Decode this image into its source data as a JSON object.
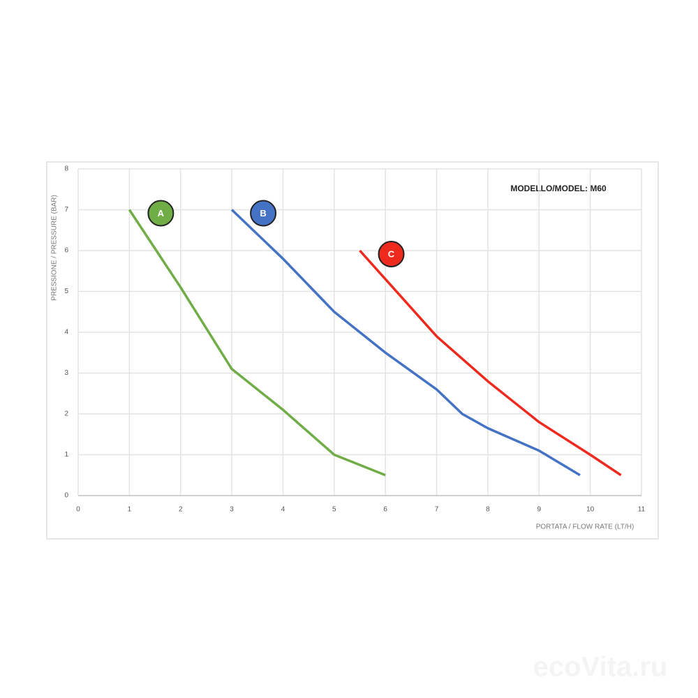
{
  "chart_data": {
    "type": "line",
    "annotation": "MODELLO/MODEL: M60",
    "x_label": "PORTATA / FLOW RATE (LT/H)",
    "y_label": "PRESSIONE / PRESSURE (BAR)",
    "watermark": "ecoVita.ru",
    "xlim": [
      0,
      11
    ],
    "xticks": [
      0,
      1,
      2,
      3,
      4,
      5,
      6,
      7,
      8,
      9,
      10,
      11
    ],
    "ylim": [
      0,
      8
    ],
    "yticks": [
      0,
      1,
      2,
      3,
      4,
      5,
      6,
      7,
      8
    ],
    "grid": true,
    "series": [
      {
        "name": "A",
        "color": "#70ad47",
        "x": [
          1,
          2,
          3,
          4,
          5,
          6
        ],
        "values": [
          7,
          5.1,
          3.1,
          2.1,
          1.0,
          0.5
        ]
      },
      {
        "name": "B",
        "color": "#4472c4",
        "x": [
          3,
          4,
          5,
          6,
          7,
          7.5,
          8,
          9,
          9.8
        ],
        "values": [
          7,
          5.8,
          4.5,
          3.5,
          2.6,
          2.0,
          1.65,
          1.1,
          0.5
        ]
      },
      {
        "name": "C",
        "color": "#ed2a1d",
        "x": [
          5.5,
          6,
          7,
          8,
          9,
          10,
          10.6
        ],
        "values": [
          6,
          5.3,
          3.9,
          2.8,
          1.8,
          1.0,
          0.5
        ]
      }
    ]
  }
}
